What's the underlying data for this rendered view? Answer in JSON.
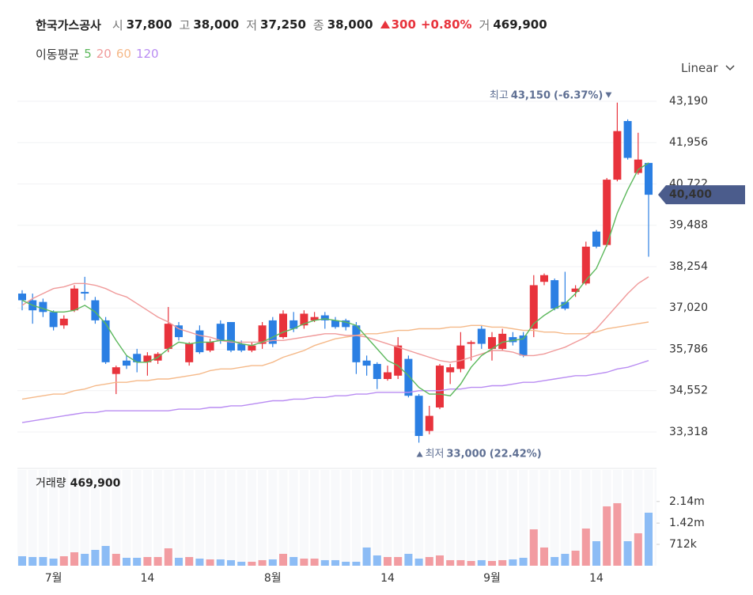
{
  "header": {
    "name": "한국가스공사",
    "open": {
      "label": "시",
      "value": "37,800"
    },
    "high": {
      "label": "고",
      "value": "38,000"
    },
    "low": {
      "label": "저",
      "value": "37,250"
    },
    "close": {
      "label": "종",
      "value": "38,000"
    },
    "change": "300",
    "change_pct": "+0.80%",
    "volume": {
      "label": "거",
      "value": "469,900"
    }
  },
  "chart_data": [
    {
      "type": "candlestick",
      "scale": "Linear",
      "grid": true,
      "legend_title": "이동평균",
      "up_color": "#e8333c",
      "down_color": "#2b7fe3",
      "categories": [
        null,
        null,
        null,
        "7월",
        null,
        null,
        null,
        null,
        null,
        null,
        null,
        null,
        "14",
        null,
        null,
        null,
        null,
        null,
        null,
        null,
        null,
        null,
        null,
        null,
        "8월",
        null,
        null,
        null,
        null,
        null,
        null,
        null,
        null,
        null,
        null,
        "14",
        null,
        null,
        null,
        null,
        null,
        null,
        null,
        null,
        null,
        "9월",
        null,
        null,
        null,
        null,
        null,
        null,
        null,
        null,
        null,
        "14",
        null,
        null,
        null,
        null,
        null
      ],
      "open": [
        37450,
        37250,
        37200,
        36900,
        36500,
        36950,
        37500,
        37250,
        36650,
        35050,
        35450,
        35650,
        35400,
        35450,
        35800,
        36500,
        35400,
        36350,
        35750,
        36550,
        36600,
        35950,
        35750,
        35950,
        36650,
        36150,
        36650,
        36500,
        36650,
        36800,
        36650,
        36650,
        36500,
        35450,
        35350,
        34900,
        35000,
        35500,
        34400,
        33350,
        34050,
        35100,
        35200,
        35950,
        36400,
        35800,
        35800,
        36150,
        36200,
        36400,
        37800,
        37850,
        37200,
        37500,
        37750,
        39300,
        38900,
        40850,
        42600,
        41050,
        41350
      ],
      "high": [
        37550,
        37450,
        37300,
        36950,
        36800,
        37700,
        37950,
        37350,
        36750,
        35300,
        35600,
        35800,
        35700,
        35700,
        37050,
        36600,
        36000,
        36500,
        36100,
        36650,
        36600,
        36050,
        36000,
        36600,
        36750,
        36950,
        36900,
        36950,
        36900,
        36900,
        36750,
        36700,
        36600,
        35600,
        35400,
        35300,
        36150,
        35600,
        34450,
        34100,
        35350,
        35350,
        36300,
        36050,
        36500,
        36300,
        36400,
        36300,
        36300,
        38000,
        38050,
        37900,
        38100,
        37700,
        39000,
        39350,
        40900,
        43150,
        42650,
        42250,
        41350
      ],
      "low": [
        36950,
        36550,
        36750,
        36350,
        36400,
        36900,
        37250,
        36550,
        35350,
        34450,
        35200,
        35100,
        35000,
        35350,
        35700,
        36050,
        35300,
        35650,
        35700,
        35950,
        35700,
        35700,
        35700,
        35800,
        35850,
        36100,
        36300,
        36400,
        36600,
        36400,
        36400,
        36350,
        35050,
        35000,
        34600,
        34850,
        34900,
        34350,
        33000,
        33250,
        34000,
        34750,
        35100,
        35450,
        35800,
        35450,
        35750,
        35900,
        35550,
        36150,
        37700,
        36950,
        36950,
        37350,
        37700,
        38800,
        38850,
        40800,
        41450,
        41000,
        38550
      ],
      "close": [
        37250,
        36950,
        36900,
        36450,
        36700,
        37600,
        37450,
        36650,
        35400,
        35250,
        35300,
        35400,
        35600,
        35650,
        36550,
        36150,
        35950,
        35700,
        36000,
        36050,
        35750,
        35750,
        35900,
        36500,
        35950,
        36850,
        36400,
        36850,
        36750,
        36650,
        36450,
        36450,
        35400,
        35300,
        34900,
        35100,
        35900,
        34400,
        33200,
        33800,
        35300,
        35250,
        35900,
        36000,
        35950,
        36150,
        36250,
        36000,
        35600,
        37700,
        38000,
        37000,
        37000,
        37600,
        38850,
        38850,
        40850,
        42300,
        41500,
        41450,
        40400
      ],
      "series": [
        {
          "name": "5",
          "color": "#5cb85c",
          "values": [
            37250,
            37100,
            37000,
            36900,
            36900,
            36950,
            37100,
            36900,
            36550,
            36050,
            35600,
            35400,
            35400,
            35550,
            35800,
            36000,
            35950,
            36000,
            36000,
            36050,
            36050,
            35950,
            35900,
            36000,
            36150,
            36300,
            36400,
            36550,
            36650,
            36700,
            36650,
            36600,
            36500,
            36150,
            35800,
            35450,
            35300,
            35000,
            34650,
            34450,
            34450,
            34400,
            34750,
            35250,
            35600,
            35800,
            36000,
            36050,
            36100,
            36550,
            36800,
            37000,
            37150,
            37450,
            37850,
            38200,
            38900,
            39850,
            40550,
            41150,
            41350
          ]
        },
        {
          "name": "20",
          "color": "#f09a9a",
          "values": [
            37100,
            37300,
            37450,
            37600,
            37650,
            37750,
            37750,
            37700,
            37600,
            37450,
            37350,
            37150,
            36950,
            36750,
            36600,
            36400,
            36300,
            36200,
            36150,
            36050,
            36000,
            36000,
            36000,
            36000,
            36050,
            36050,
            36100,
            36150,
            36200,
            36250,
            36250,
            36200,
            36200,
            36150,
            36050,
            35950,
            35850,
            35750,
            35650,
            35550,
            35450,
            35400,
            35450,
            35550,
            35650,
            35750,
            35750,
            35700,
            35600,
            35600,
            35650,
            35750,
            35850,
            36000,
            36150,
            36400,
            36750,
            37100,
            37450,
            37750,
            37950
          ]
        },
        {
          "name": "60",
          "color": "#f5b989",
          "values": [
            34300,
            34350,
            34400,
            34450,
            34450,
            34550,
            34600,
            34700,
            34750,
            34800,
            34800,
            34850,
            34850,
            34900,
            34900,
            34950,
            35000,
            35050,
            35150,
            35200,
            35200,
            35250,
            35300,
            35300,
            35400,
            35550,
            35650,
            35750,
            35900,
            36000,
            36100,
            36150,
            36200,
            36250,
            36250,
            36300,
            36350,
            36350,
            36400,
            36400,
            36400,
            36450,
            36450,
            36500,
            36500,
            36450,
            36450,
            36400,
            36350,
            36350,
            36300,
            36300,
            36250,
            36250,
            36250,
            36300,
            36400,
            36450,
            36500,
            36550,
            36600
          ]
        },
        {
          "name": "120",
          "color": "#b98cf2",
          "values": [
            33600,
            33650,
            33700,
            33750,
            33800,
            33850,
            33900,
            33900,
            33950,
            33950,
            33950,
            33950,
            33950,
            33950,
            33950,
            34000,
            34000,
            34000,
            34050,
            34050,
            34100,
            34100,
            34150,
            34200,
            34250,
            34250,
            34300,
            34300,
            34350,
            34350,
            34400,
            34400,
            34450,
            34450,
            34500,
            34500,
            34500,
            34500,
            34550,
            34550,
            34550,
            34600,
            34600,
            34650,
            34650,
            34700,
            34700,
            34750,
            34800,
            34800,
            34850,
            34900,
            34950,
            35000,
            35000,
            35050,
            35100,
            35200,
            35250,
            35350,
            35450
          ]
        }
      ],
      "ylim": [
        32515,
        43851
      ],
      "yticks": [
        {
          "value": 33318,
          "label": "33,318"
        },
        {
          "value": 34552,
          "label": "34,552"
        },
        {
          "value": 35786,
          "label": "35,786"
        },
        {
          "value": 37020,
          "label": "37,020"
        },
        {
          "value": 38254,
          "label": "38,254"
        },
        {
          "value": 39488,
          "label": "39,488"
        },
        {
          "value": 40722,
          "label": "40,722"
        },
        {
          "value": 41956,
          "label": "41,956"
        },
        {
          "value": 43190,
          "label": "43,190"
        }
      ],
      "last_price": {
        "value": 40400,
        "label": "40,400"
      },
      "annotations": [
        {
          "kind": "max",
          "label": "최고",
          "value": 43150,
          "value_label": "43,150",
          "change": "(-6.37%)"
        },
        {
          "kind": "min",
          "label": "최저",
          "value": 33000,
          "value_label": "33,000",
          "change": "(22.42%)"
        }
      ]
    },
    {
      "type": "bar",
      "label": "거래량",
      "current": "469,900",
      "up_color": "#f29ca1",
      "down_color": "#8cbcf5",
      "values": [
        316000,
        290000,
        290000,
        237000,
        316000,
        448000,
        396000,
        527000,
        659000,
        396000,
        264000,
        264000,
        290000,
        290000,
        580000,
        264000,
        290000,
        237000,
        211000,
        211000,
        185000,
        132000,
        132000,
        185000,
        211000,
        396000,
        290000,
        237000,
        237000,
        185000,
        185000,
        132000,
        132000,
        607000,
        343000,
        290000,
        290000,
        396000,
        237000,
        290000,
        343000,
        185000,
        185000,
        158000,
        185000,
        158000,
        185000,
        211000,
        264000,
        1213000,
        607000,
        290000,
        396000,
        501000,
        1239000,
        817000,
        1978000,
        2083000,
        817000,
        1081000,
        1767000
      ],
      "ylim": [
        0,
        3190000
      ],
      "yticks": [
        {
          "value": 712000,
          "label": "712k"
        },
        {
          "value": 1420000,
          "label": "1.42m"
        },
        {
          "value": 2140000,
          "label": "2.14m"
        }
      ]
    }
  ]
}
